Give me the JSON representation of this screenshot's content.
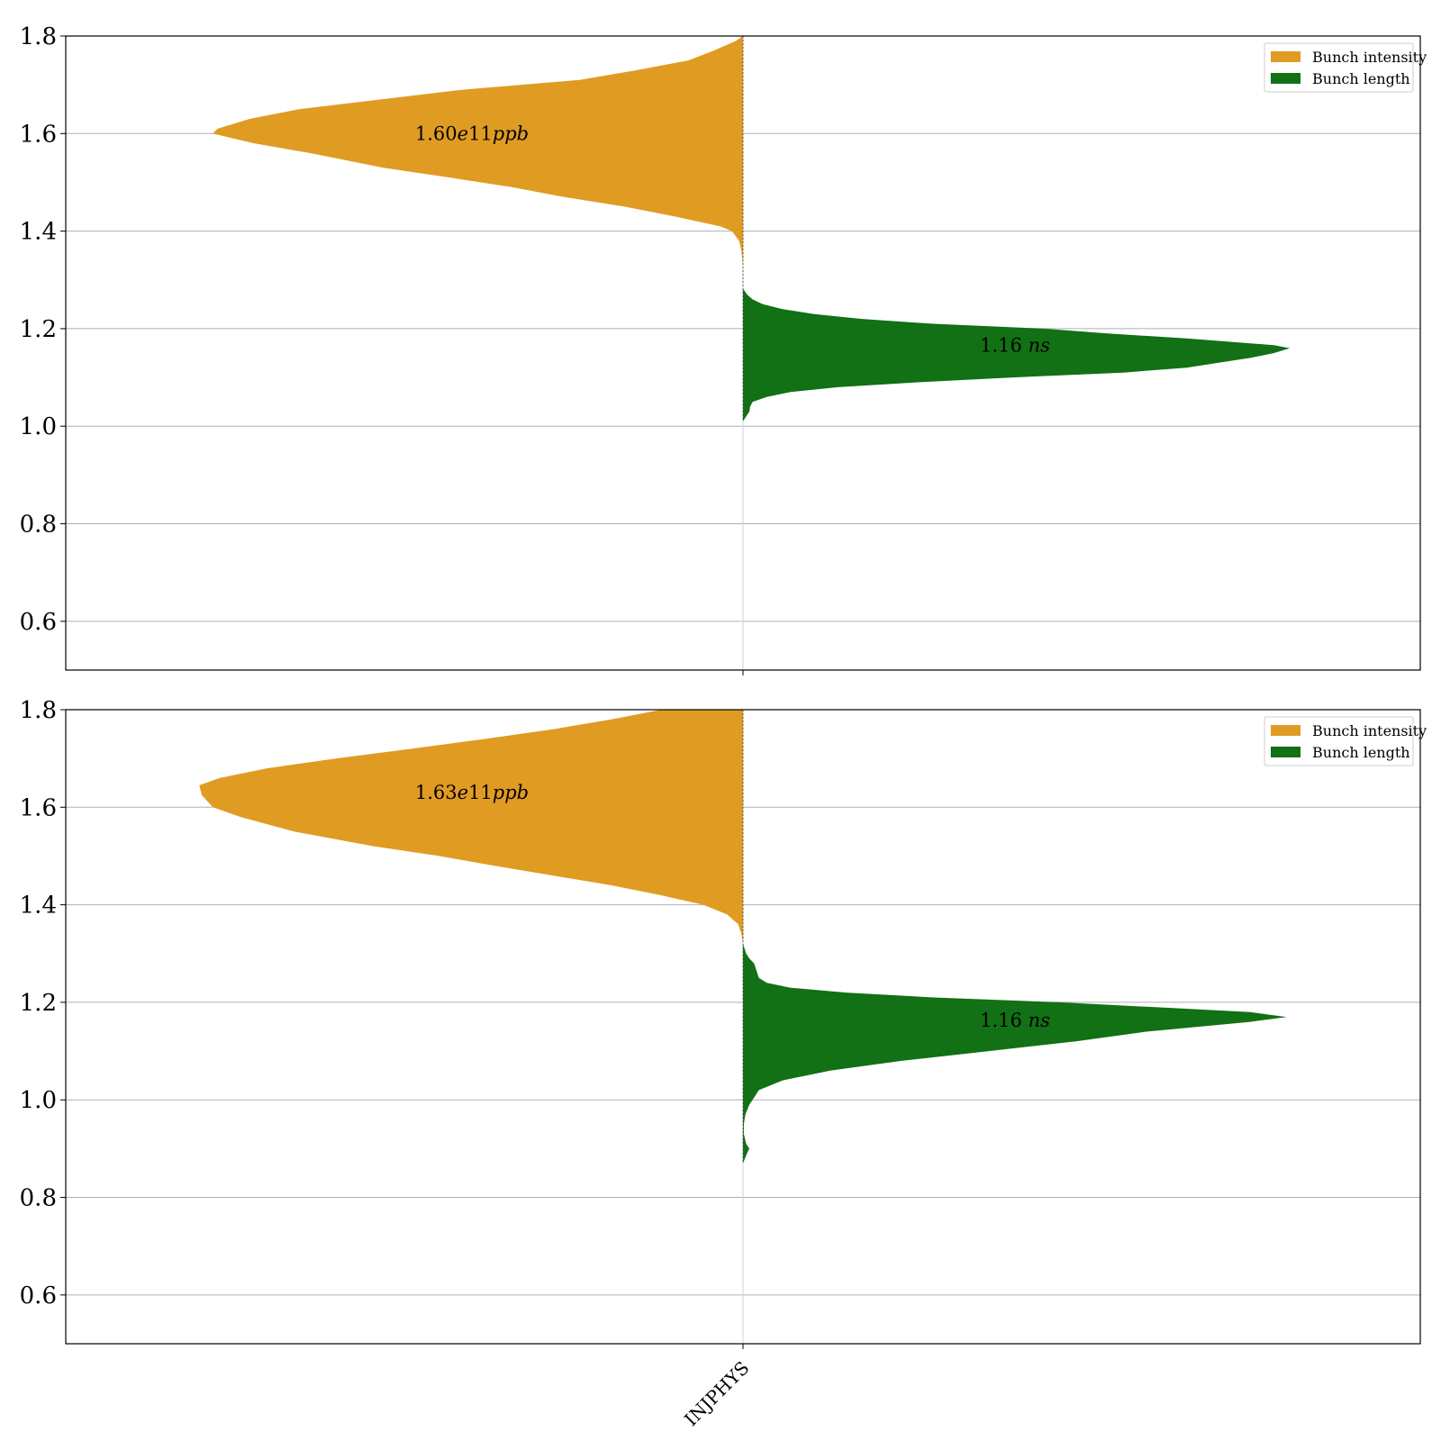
{
  "colors": {
    "intensity": "#E09B22",
    "length": "#127015",
    "grid": "#b0b0b0",
    "axis": "#000000"
  },
  "chart_data": [
    {
      "type": "violin",
      "split": true,
      "categories": [
        "INJPHYS"
      ],
      "ylim": [
        0.5,
        1.8
      ],
      "yticks": [
        "0.6",
        "0.8",
        "1.0",
        "1.2",
        "1.4",
        "1.6",
        "1.8"
      ],
      "grid": true,
      "legend_position": "top-right",
      "legend": [
        "Bunch intensity",
        "Bunch length"
      ],
      "series": [
        {
          "name": "Bunch intensity",
          "side": "left",
          "color": "#E09B22",
          "annotation": "1.60e11ppb",
          "annotation_parts": [
            "1.60",
            "e",
            "11",
            "ppb"
          ],
          "annotation_y": 1.6,
          "profile": [
            [
              1.33,
              0.0
            ],
            [
              1.36,
              0.002
            ],
            [
              1.38,
              0.005
            ],
            [
              1.4,
              0.014
            ],
            [
              1.41,
              0.029
            ],
            [
              1.43,
              0.086
            ],
            [
              1.45,
              0.149
            ],
            [
              1.47,
              0.226
            ],
            [
              1.49,
              0.291
            ],
            [
              1.51,
              0.371
            ],
            [
              1.53,
              0.454
            ],
            [
              1.56,
              0.546
            ],
            [
              1.58,
              0.617
            ],
            [
              1.6,
              0.669
            ],
            [
              1.61,
              0.663
            ],
            [
              1.63,
              0.623
            ],
            [
              1.65,
              0.56
            ],
            [
              1.67,
              0.457
            ],
            [
              1.69,
              0.354
            ],
            [
              1.71,
              0.206
            ],
            [
              1.73,
              0.134
            ],
            [
              1.75,
              0.069
            ],
            [
              1.77,
              0.037
            ],
            [
              1.79,
              0.009
            ],
            [
              1.8,
              0.0
            ]
          ]
        },
        {
          "name": "Bunch length",
          "side": "right",
          "color": "#127015",
          "annotation": "1.16 ns",
          "annotation_parts": [
            "1.16 ",
            "ns"
          ],
          "annotation_y": 1.166,
          "profile": [
            [
              1.01,
              0.0
            ],
            [
              1.02,
              0.004
            ],
            [
              1.03,
              0.008
            ],
            [
              1.04,
              0.009
            ],
            [
              1.05,
              0.012
            ],
            [
              1.06,
              0.03
            ],
            [
              1.07,
              0.06
            ],
            [
              1.08,
              0.12
            ],
            [
              1.09,
              0.22
            ],
            [
              1.1,
              0.34
            ],
            [
              1.11,
              0.48
            ],
            [
              1.12,
              0.56
            ],
            [
              1.13,
              0.6
            ],
            [
              1.14,
              0.64
            ],
            [
              1.15,
              0.67
            ],
            [
              1.16,
              0.69
            ],
            [
              1.166,
              0.67
            ],
            [
              1.17,
              0.64
            ],
            [
              1.18,
              0.56
            ],
            [
              1.19,
              0.46
            ],
            [
              1.2,
              0.38
            ],
            [
              1.21,
              0.24
            ],
            [
              1.22,
              0.15
            ],
            [
              1.23,
              0.09
            ],
            [
              1.24,
              0.05
            ],
            [
              1.25,
              0.025
            ],
            [
              1.26,
              0.012
            ],
            [
              1.27,
              0.005
            ],
            [
              1.28,
              0.001
            ]
          ]
        }
      ]
    },
    {
      "type": "violin",
      "split": true,
      "categories": [
        "INJPHYS"
      ],
      "ylim": [
        0.5,
        1.8
      ],
      "yticks": [
        "0.6",
        "0.8",
        "1.0",
        "1.2",
        "1.4",
        "1.6",
        "1.8"
      ],
      "grid": true,
      "legend_position": "top-right",
      "legend": [
        "Bunch intensity",
        "Bunch length"
      ],
      "series": [
        {
          "name": "Bunch intensity",
          "side": "left",
          "color": "#E09B22",
          "annotation": "1.63e11ppb",
          "annotation_parts": [
            "1.63",
            "e",
            "11",
            "ppb"
          ],
          "annotation_y": 1.63,
          "profile": [
            [
              1.32,
              0.0
            ],
            [
              1.34,
              0.002
            ],
            [
              1.36,
              0.006
            ],
            [
              1.38,
              0.02
            ],
            [
              1.4,
              0.05
            ],
            [
              1.42,
              0.105
            ],
            [
              1.44,
              0.166
            ],
            [
              1.46,
              0.24
            ],
            [
              1.48,
              0.314
            ],
            [
              1.5,
              0.383
            ],
            [
              1.52,
              0.466
            ],
            [
              1.55,
              0.566
            ],
            [
              1.58,
              0.634
            ],
            [
              1.6,
              0.669
            ],
            [
              1.625,
              0.683
            ],
            [
              1.645,
              0.686
            ],
            [
              1.66,
              0.66
            ],
            [
              1.68,
              0.6
            ],
            [
              1.7,
              0.514
            ],
            [
              1.72,
              0.417
            ],
            [
              1.74,
              0.326
            ],
            [
              1.76,
              0.24
            ],
            [
              1.78,
              0.166
            ],
            [
              1.8,
              0.103
            ]
          ]
        },
        {
          "name": "Bunch length",
          "side": "right",
          "color": "#127015",
          "annotation": "1.16 ns",
          "annotation_parts": [
            "1.16 ",
            "ns"
          ],
          "annotation_y": 1.163,
          "profile": [
            [
              0.87,
              0.0
            ],
            [
              0.89,
              0.005
            ],
            [
              0.9,
              0.008
            ],
            [
              0.91,
              0.004
            ],
            [
              0.93,
              0.001
            ],
            [
              0.95,
              0.001
            ],
            [
              0.97,
              0.003
            ],
            [
              0.99,
              0.008
            ],
            [
              1.0,
              0.012
            ],
            [
              1.02,
              0.02
            ],
            [
              1.04,
              0.05
            ],
            [
              1.06,
              0.11
            ],
            [
              1.08,
              0.2
            ],
            [
              1.1,
              0.31
            ],
            [
              1.12,
              0.42
            ],
            [
              1.14,
              0.51
            ],
            [
              1.16,
              0.64
            ],
            [
              1.17,
              0.686
            ],
            [
              1.18,
              0.64
            ],
            [
              1.19,
              0.52
            ],
            [
              1.2,
              0.4
            ],
            [
              1.21,
              0.24
            ],
            [
              1.22,
              0.13
            ],
            [
              1.23,
              0.06
            ],
            [
              1.24,
              0.03
            ],
            [
              1.25,
              0.02
            ],
            [
              1.26,
              0.018
            ],
            [
              1.27,
              0.016
            ],
            [
              1.28,
              0.014
            ],
            [
              1.29,
              0.008
            ],
            [
              1.3,
              0.004
            ],
            [
              1.32,
              0.0
            ]
          ]
        }
      ]
    }
  ]
}
